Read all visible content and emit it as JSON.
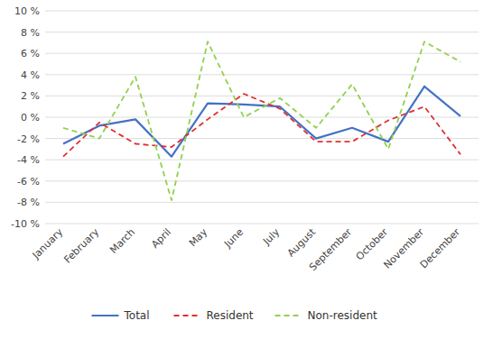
{
  "chart_data": {
    "type": "line",
    "categories": [
      "January",
      "February",
      "March",
      "April",
      "May",
      "June",
      "July",
      "August",
      "September",
      "October",
      "November",
      "December"
    ],
    "series": [
      {
        "name": "Total",
        "color": "#4472c4",
        "line_style": "solid",
        "values": [
          -2.5,
          -0.8,
          -0.2,
          -3.7,
          1.3,
          1.2,
          1.0,
          -2.0,
          -1.0,
          -2.3,
          2.9,
          0.1
        ]
      },
      {
        "name": "Resident",
        "color": "#e03030",
        "line_style": "dashed",
        "values": [
          -3.7,
          -0.5,
          -2.5,
          -2.8,
          -0.2,
          2.2,
          0.8,
          -2.3,
          -2.3,
          -0.3,
          1.0,
          -3.5
        ]
      },
      {
        "name": "Non-resident",
        "color": "#92d050",
        "line_style": "dashed",
        "values": [
          -1.0,
          -2.0,
          3.8,
          -7.8,
          7.1,
          0.0,
          1.8,
          -1.0,
          3.1,
          -3.0,
          7.1,
          5.2
        ]
      }
    ],
    "ylim": [
      -10,
      10
    ],
    "yticks": [
      {
        "value": -10,
        "label": "-10 %"
      },
      {
        "value": -8,
        "label": "-8 %"
      },
      {
        "value": -6,
        "label": "-6 %"
      },
      {
        "value": -4,
        "label": "-4 %"
      },
      {
        "value": -2,
        "label": "-2 %"
      },
      {
        "value": 0,
        "label": "0 %"
      },
      {
        "value": 2,
        "label": "2 %"
      },
      {
        "value": 4,
        "label": "4 %"
      },
      {
        "value": 6,
        "label": "6 %"
      },
      {
        "value": 8,
        "label": "8 %"
      },
      {
        "value": 10,
        "label": "10 %"
      }
    ],
    "grid": true,
    "legend": "bottom"
  }
}
